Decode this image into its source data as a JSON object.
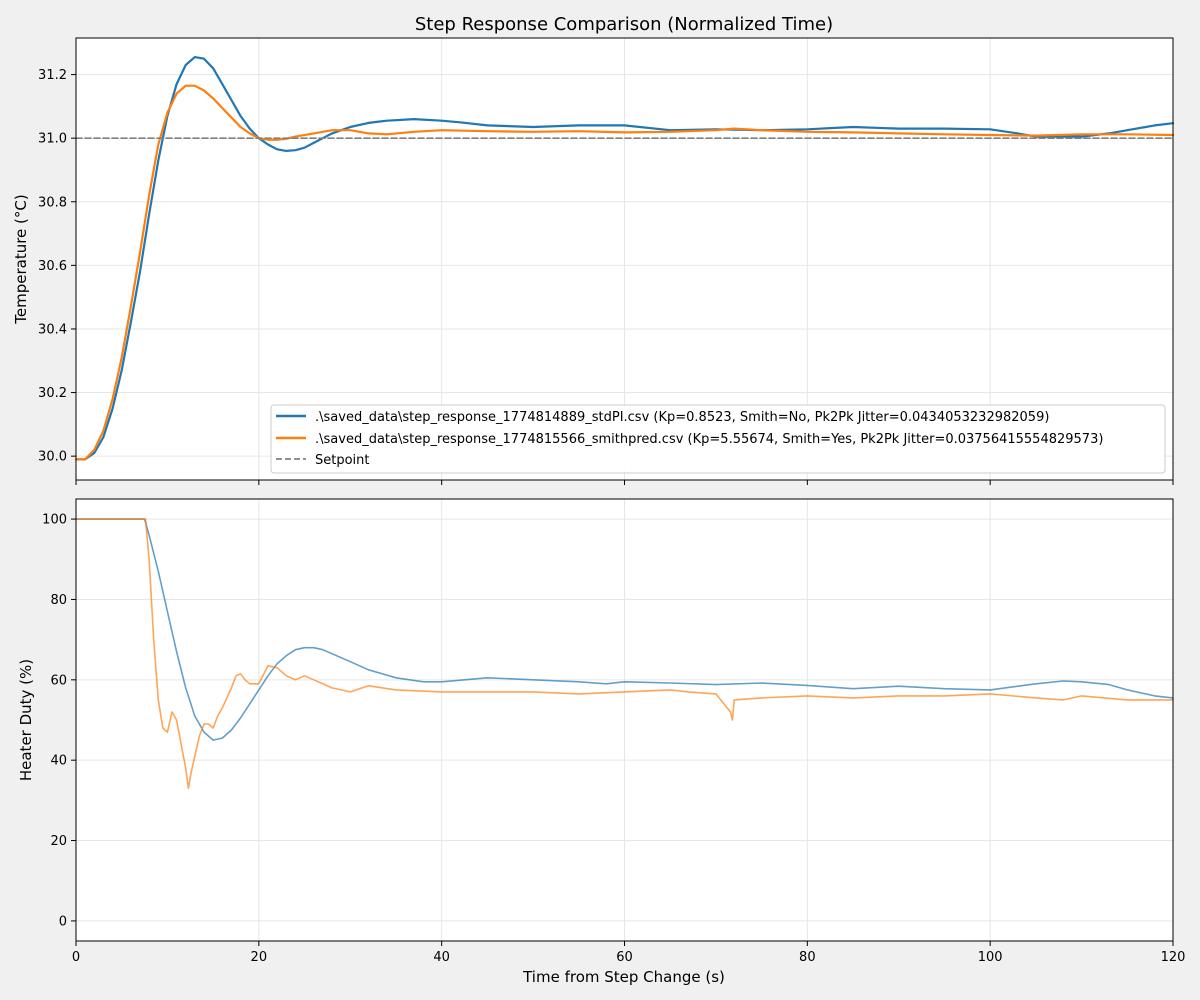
{
  "title": "Step Response Comparison (Normalized Time)",
  "xlabel": "Time from Step Change (s)",
  "colors": {
    "background": "#f0f0f0",
    "plot_background": "#ffffff",
    "series_std": "#1f77b4",
    "series_smith": "#ff7f0e",
    "setpoint": "#808080",
    "grid": "#e6e6e6"
  },
  "chart_data": [
    {
      "type": "line",
      "ylabel": "Temperature (°C)",
      "xlim": [
        0,
        120
      ],
      "ylim": [
        29.925,
        31.315
      ],
      "xticks": [
        "0",
        "20",
        "40",
        "60",
        "80",
        "100",
        "120"
      ],
      "xtick_values": [
        0,
        20,
        40,
        60,
        80,
        100,
        120
      ],
      "yticks": [
        "30.0",
        "30.2",
        "30.4",
        "30.6",
        "30.8",
        "31.0",
        "31.2"
      ],
      "ytick_values": [
        30.0,
        30.2,
        30.4,
        30.6,
        30.8,
        31.0,
        31.2
      ],
      "grid": true,
      "legend_placement": "lower-right",
      "series": [
        {
          "name": ".\\saved_data\\step_response_1774814889_stdPI.csv (Kp=0.8523, Smith=No, Pk2Pk Jitter=0.0434053232982059)",
          "x": [
            0,
            1,
            2,
            3,
            4,
            5,
            6,
            7,
            8,
            9,
            10,
            11,
            12,
            13,
            14,
            15,
            16,
            17,
            18,
            19,
            20,
            21,
            22,
            23,
            24,
            25,
            26,
            27,
            28,
            30,
            32,
            34,
            37,
            40,
            42,
            45,
            50,
            55,
            60,
            65,
            70,
            75,
            80,
            85,
            90,
            95,
            100,
            103,
            105,
            110,
            113,
            115,
            118,
            120
          ],
          "y": [
            29.99,
            29.99,
            30.01,
            30.06,
            30.15,
            30.27,
            30.42,
            30.58,
            30.76,
            30.93,
            31.07,
            31.17,
            31.23,
            31.255,
            31.25,
            31.22,
            31.17,
            31.12,
            31.07,
            31.03,
            31.0,
            30.98,
            30.965,
            30.96,
            30.962,
            30.97,
            30.985,
            31.0,
            31.015,
            31.035,
            31.048,
            31.055,
            31.06,
            31.055,
            31.05,
            31.04,
            31.035,
            31.04,
            31.04,
            31.025,
            31.028,
            31.025,
            31.028,
            31.035,
            31.03,
            31.03,
            31.028,
            31.015,
            31.005,
            31.005,
            31.015,
            31.025,
            31.04,
            31.047
          ]
        },
        {
          "name": ".\\saved_data\\step_response_1774815566_smithpred.csv (Kp=5.55674, Smith=Yes, Pk2Pk Jitter=0.03756415554829573)",
          "x": [
            0,
            1,
            2,
            3,
            4,
            5,
            6,
            7,
            8,
            9,
            10,
            11,
            12,
            13,
            14,
            15,
            16,
            17,
            18,
            19,
            20,
            21,
            22,
            23,
            24,
            26,
            28,
            30,
            32,
            34,
            37,
            40,
            45,
            50,
            55,
            60,
            65,
            70,
            72,
            75,
            80,
            85,
            90,
            95,
            100,
            105,
            110,
            115,
            120
          ],
          "y": [
            29.99,
            29.99,
            30.02,
            30.08,
            30.18,
            30.31,
            30.47,
            30.64,
            30.82,
            30.98,
            31.08,
            31.14,
            31.165,
            31.165,
            31.15,
            31.125,
            31.095,
            31.065,
            31.035,
            31.015,
            31.0,
            30.995,
            30.995,
            30.998,
            31.005,
            31.015,
            31.025,
            31.025,
            31.015,
            31.012,
            31.02,
            31.025,
            31.022,
            31.02,
            31.022,
            31.018,
            31.02,
            31.025,
            31.03,
            31.025,
            31.02,
            31.018,
            31.015,
            31.012,
            31.01,
            31.008,
            31.012,
            31.012,
            31.01
          ]
        },
        {
          "name": "Setpoint",
          "x": [
            0,
            120
          ],
          "y": [
            31.0,
            31.0
          ]
        }
      ]
    },
    {
      "type": "line",
      "ylabel": "Heater Duty (%)",
      "xlim": [
        0,
        120
      ],
      "ylim": [
        -5,
        105
      ],
      "xticks": [
        "0",
        "20",
        "40",
        "60",
        "80",
        "100",
        "120"
      ],
      "xtick_values": [
        0,
        20,
        40,
        60,
        80,
        100,
        120
      ],
      "yticks": [
        "0",
        "20",
        "40",
        "60",
        "80",
        "100"
      ],
      "ytick_values": [
        0,
        20,
        40,
        60,
        80,
        100
      ],
      "grid": true,
      "series": [
        {
          "x": [
            0,
            7.5,
            8,
            9,
            10,
            11,
            12,
            13,
            14,
            15,
            16,
            17,
            18,
            19,
            20,
            21,
            22,
            23,
            24,
            25,
            26,
            27,
            28,
            30,
            32,
            35,
            38,
            40,
            45,
            50,
            55,
            58,
            60,
            65,
            70,
            75,
            80,
            85,
            90,
            95,
            100,
            105,
            108,
            110,
            113,
            115,
            118,
            120
          ],
          "y": [
            100,
            100,
            96,
            87,
            77,
            67,
            58,
            51,
            47,
            45,
            45.5,
            47.5,
            50.5,
            54,
            57.5,
            61,
            64,
            66,
            67.5,
            68,
            68,
            67.5,
            66.5,
            64.5,
            62.5,
            60.5,
            59.5,
            59.5,
            60.5,
            60,
            59.5,
            59,
            59.5,
            59.2,
            58.8,
            59.2,
            58.6,
            57.8,
            58.4,
            57.8,
            57.5,
            59,
            59.7,
            59.5,
            58.8,
            57.5,
            56,
            55.5
          ]
        },
        {
          "x": [
            0,
            7.6,
            8,
            8.5,
            9,
            9.5,
            10,
            10.5,
            11,
            11.5,
            12,
            12.3,
            12.6,
            13,
            13.5,
            14,
            14.5,
            15,
            15.5,
            16,
            17,
            17.5,
            18,
            18.5,
            19,
            20,
            21,
            22,
            23,
            24,
            25,
            26,
            28,
            30,
            32,
            35,
            40,
            45,
            50,
            55,
            60,
            65,
            67,
            70,
            71.6,
            71.8,
            72,
            75,
            80,
            85,
            90,
            95,
            100,
            105,
            108,
            110,
            115,
            120
          ],
          "y": [
            100,
            100,
            90,
            70,
            55,
            48,
            47,
            52,
            50,
            44,
            38,
            33,
            37,
            41,
            46,
            49,
            49,
            48,
            51,
            53,
            58,
            61,
            61.5,
            60,
            59,
            59,
            63.5,
            63,
            61,
            60,
            61,
            60,
            58,
            57,
            58.5,
            57.5,
            57,
            57,
            57,
            56.5,
            57,
            57.5,
            57,
            56.5,
            52,
            50,
            55,
            55.5,
            56,
            55.5,
            56,
            56,
            56.5,
            55.5,
            55,
            56,
            55,
            55
          ]
        }
      ]
    }
  ]
}
